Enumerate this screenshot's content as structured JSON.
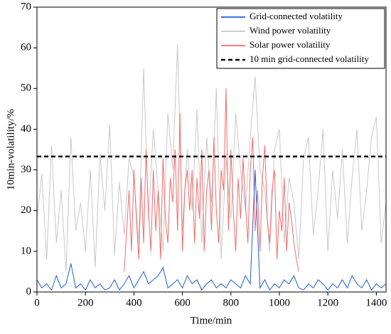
{
  "chart_data": {
    "type": "line",
    "x_label": "Time/min",
    "y_label": "10min-volatility/%",
    "xlim": [
      0,
      1440
    ],
    "ylim": [
      0,
      70
    ],
    "xticks": [
      0,
      200,
      400,
      600,
      800,
      1000,
      1200,
      1400
    ],
    "yticks": [
      0,
      10,
      20,
      30,
      40,
      50,
      60,
      70
    ],
    "legend": "top-right",
    "series": [
      {
        "name": "Grid-connected volatility",
        "color": "#1f5fcf",
        "x": [
          0,
          20,
          40,
          60,
          80,
          100,
          120,
          140,
          160,
          180,
          200,
          220,
          240,
          260,
          280,
          300,
          320,
          340,
          360,
          380,
          400,
          420,
          440,
          460,
          480,
          500,
          520,
          540,
          560,
          580,
          600,
          620,
          640,
          660,
          680,
          700,
          720,
          740,
          760,
          780,
          800,
          820,
          840,
          860,
          880,
          900,
          920,
          940,
          960,
          980,
          1000,
          1020,
          1040,
          1060,
          1080,
          1100,
          1120,
          1140,
          1160,
          1180,
          1200,
          1220,
          1240,
          1260,
          1280,
          1300,
          1320,
          1340,
          1360,
          1380,
          1400,
          1420,
          1440
        ],
        "values": [
          3,
          1,
          2,
          0.5,
          4,
          1,
          2,
          7,
          1,
          2,
          0.5,
          3,
          1,
          2,
          0.5,
          1,
          3,
          0.5,
          2,
          4,
          1,
          3,
          5,
          2,
          3,
          4,
          6,
          1,
          2,
          3,
          1,
          4,
          2,
          3,
          0.5,
          2,
          3,
          1,
          2,
          1,
          3,
          2,
          1,
          4,
          2,
          30,
          1,
          3,
          0.5,
          2,
          1,
          3,
          2,
          4,
          1,
          0.5,
          2,
          1,
          3,
          2,
          0.5,
          2,
          1,
          3,
          1,
          4,
          2,
          1,
          3,
          0.5,
          2,
          1,
          2
        ]
      },
      {
        "name": "Wind power volatility",
        "color": "#c8c8c8",
        "x": [
          0,
          20,
          40,
          60,
          80,
          100,
          120,
          140,
          160,
          180,
          200,
          220,
          240,
          260,
          280,
          300,
          320,
          340,
          360,
          380,
          400,
          420,
          440,
          460,
          480,
          500,
          520,
          540,
          560,
          580,
          600,
          620,
          640,
          660,
          680,
          700,
          720,
          740,
          760,
          780,
          800,
          820,
          840,
          860,
          880,
          900,
          920,
          940,
          960,
          980,
          1000,
          1020,
          1040,
          1060,
          1080,
          1100,
          1120,
          1140,
          1160,
          1180,
          1200,
          1220,
          1240,
          1260,
          1280,
          1300,
          1320,
          1340,
          1360,
          1380,
          1400,
          1420,
          1440
        ],
        "values": [
          18,
          29,
          8,
          36,
          12,
          25,
          5,
          38,
          15,
          22,
          10,
          30,
          6,
          34,
          20,
          41,
          9,
          27,
          14,
          33,
          28,
          12,
          55,
          18,
          40,
          25,
          10,
          44,
          30,
          61,
          15,
          35,
          20,
          45,
          12,
          38,
          22,
          50,
          8,
          33,
          18,
          44,
          30,
          20,
          38,
          53,
          30,
          25,
          10,
          35,
          40,
          12,
          28,
          22,
          8,
          33,
          38,
          14,
          25,
          40,
          10,
          30,
          18,
          35,
          12,
          28,
          40,
          15,
          25,
          38,
          43,
          12,
          22
        ]
      },
      {
        "name": "Solar power volatility",
        "color": "#f26b6b",
        "x": [
          360,
          370,
          380,
          390,
          400,
          410,
          420,
          430,
          440,
          450,
          460,
          470,
          480,
          490,
          500,
          510,
          520,
          530,
          540,
          550,
          560,
          570,
          580,
          590,
          600,
          610,
          620,
          630,
          640,
          650,
          660,
          670,
          680,
          690,
          700,
          710,
          720,
          730,
          740,
          750,
          760,
          770,
          780,
          790,
          800,
          810,
          820,
          830,
          840,
          850,
          860,
          870,
          880,
          890,
          900,
          910,
          920,
          930,
          940,
          950,
          960,
          970,
          980,
          990,
          1000,
          1010,
          1020,
          1030,
          1040,
          1050,
          1060,
          1070,
          1080
        ],
        "values": [
          5,
          15,
          25,
          10,
          30,
          18,
          8,
          28,
          12,
          35,
          20,
          10,
          30,
          15,
          25,
          8,
          33,
          18,
          12,
          28,
          22,
          35,
          15,
          44,
          10,
          25,
          30,
          20,
          30,
          12,
          28,
          18,
          35,
          10,
          25,
          30,
          15,
          38,
          20,
          12,
          30,
          25,
          50,
          15,
          35,
          20,
          10,
          28,
          18,
          33,
          22,
          12,
          30,
          38,
          15,
          25,
          10,
          28,
          36,
          18,
          12,
          25,
          30,
          8,
          20,
          15,
          28,
          10,
          22,
          18,
          12,
          8,
          5
        ]
      },
      {
        "name": "10 min grid-connected volatility",
        "color": "#000000",
        "dashed": true,
        "x": [
          0,
          1440
        ],
        "values": [
          33.3,
          33.3
        ]
      }
    ]
  }
}
